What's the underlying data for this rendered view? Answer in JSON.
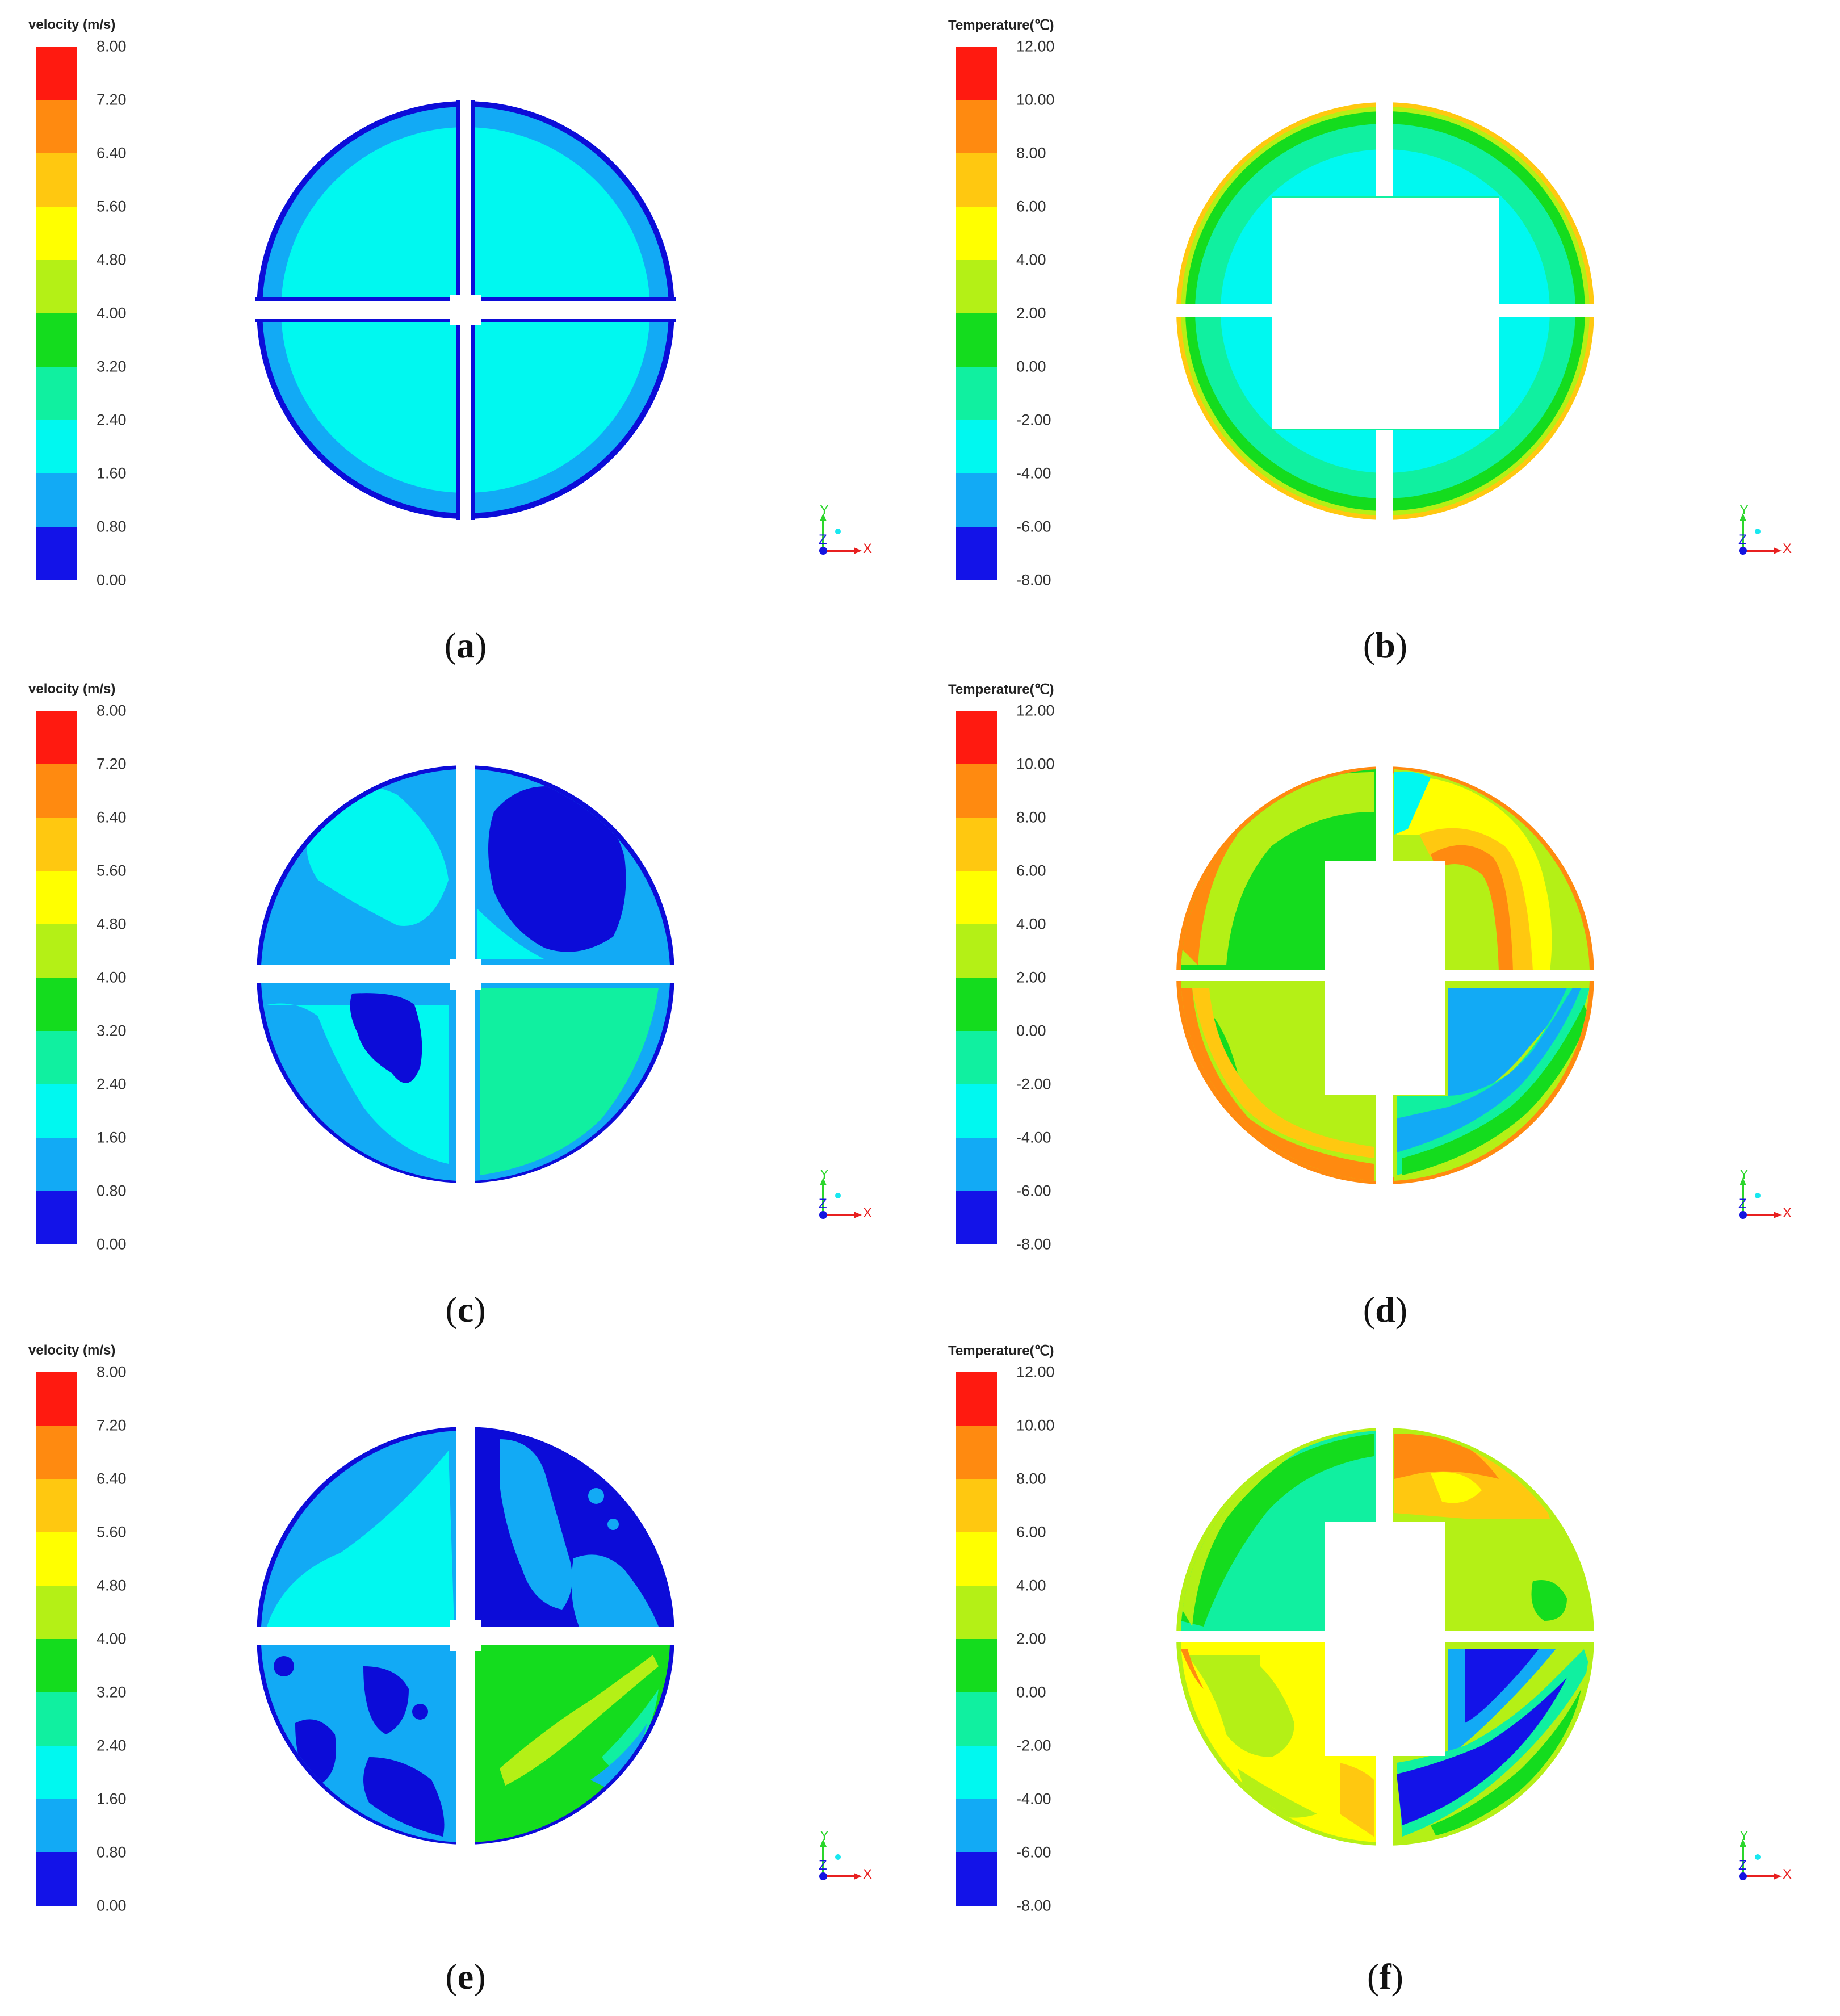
{
  "colors": {
    "scale": [
      "#ff1a10",
      "#ff8a10",
      "#ffc810",
      "#ffff00",
      "#b4f016",
      "#14dc1e",
      "#10f0a0",
      "#00f8f0",
      "#12aaf5",
      "#1313e8"
    ],
    "wall": "#0c0cd8"
  },
  "velocity_legend": {
    "title": "velocity (m/s)",
    "ticks": [
      "8.00",
      "7.20",
      "6.40",
      "5.60",
      "4.80",
      "4.00",
      "3.20",
      "2.40",
      "1.60",
      "0.80",
      "0.00"
    ]
  },
  "temperature_legend": {
    "title": "Temperature(℃)",
    "ticks": [
      "12.00",
      "10.00",
      "8.00",
      "6.00",
      "4.00",
      "2.00",
      "0.00",
      "-2.00",
      "-4.00",
      "-6.00",
      "-8.00"
    ]
  },
  "axis_triad": {
    "y": "Y",
    "z": "Z",
    "x": "X"
  },
  "panels": [
    {
      "label": "a"
    },
    {
      "label": "b"
    },
    {
      "label": "c"
    },
    {
      "label": "d"
    },
    {
      "label": "e"
    },
    {
      "label": "f"
    }
  ]
}
